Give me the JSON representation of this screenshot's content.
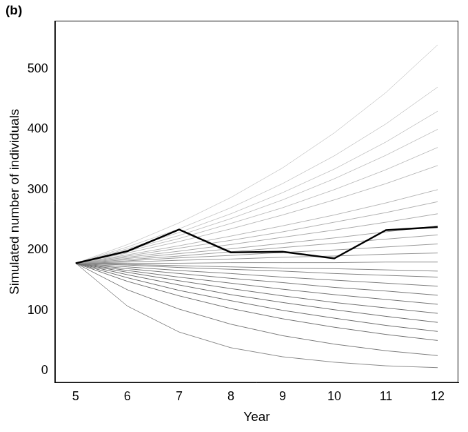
{
  "chart_data": {
    "type": "line",
    "panel_label": "(b)",
    "x_label": "Year",
    "y_label": "Simulated number of individuals",
    "x": [
      5,
      6,
      7,
      8,
      9,
      10,
      11,
      12
    ],
    "xlim": [
      4.6,
      12.4
    ],
    "xticks": [
      5,
      6,
      7,
      8,
      9,
      10,
      11,
      12
    ],
    "ylim": [
      -20,
      580
    ],
    "yticks": [
      0,
      100,
      200,
      300,
      400,
      500
    ],
    "grid": false,
    "series": [
      {
        "color": "#000000",
        "values": [
          178,
          198,
          234,
          196,
          197,
          186,
          233,
          238
        ]
      },
      {
        "color": "#d0d0d0",
        "values": [
          178,
          209,
          245,
          287,
          336,
          394,
          461,
          540
        ]
      },
      {
        "color": "#cccccc",
        "values": [
          178,
          205,
          235,
          270,
          310,
          356,
          409,
          470
        ]
      },
      {
        "color": "#c8c8c8",
        "values": [
          178,
          202,
          229,
          260,
          295,
          334,
          379,
          430
        ]
      },
      {
        "color": "#c4c4c4",
        "values": [
          178,
          200,
          224,
          252,
          283,
          318,
          357,
          400
        ]
      },
      {
        "color": "#c0c0c0",
        "values": [
          178,
          198,
          219,
          244,
          270,
          300,
          333,
          370
        ]
      },
      {
        "color": "#bbbbbb",
        "values": [
          178,
          195,
          214,
          235,
          258,
          283,
          310,
          340
        ]
      },
      {
        "color": "#b6b6b6",
        "values": [
          178,
          192,
          207,
          223,
          240,
          258,
          278,
          300
        ]
      },
      {
        "color": "#b0b0b0",
        "values": [
          178,
          190,
          203,
          216,
          230,
          246,
          262,
          280
        ]
      },
      {
        "color": "#aaaaaa",
        "values": [
          178,
          188,
          198,
          209,
          221,
          233,
          246,
          260
        ]
      },
      {
        "color": "#a4a4a4",
        "values": [
          178,
          186,
          194,
          202,
          211,
          220,
          230,
          240
        ]
      },
      {
        "color": "#9e9e9e",
        "values": [
          178,
          184,
          190,
          197,
          204,
          211,
          218,
          225
        ]
      },
      {
        "color": "#989898",
        "values": [
          178,
          182,
          187,
          191,
          196,
          200,
          205,
          210
        ]
      },
      {
        "color": "#929292",
        "values": [
          178,
          180,
          183,
          185,
          188,
          190,
          193,
          195
        ]
      },
      {
        "color": "#8c8c8c",
        "values": [
          178,
          178,
          178,
          179,
          179,
          179,
          180,
          180
        ]
      },
      {
        "color": "#868686",
        "values": [
          178,
          176,
          174,
          172,
          170,
          169,
          167,
          165
        ]
      },
      {
        "color": "#808080",
        "values": [
          178,
          175,
          171,
          168,
          165,
          161,
          158,
          155
        ]
      },
      {
        "color": "#7b7b7b",
        "values": [
          178,
          172,
          166,
          161,
          155,
          150,
          145,
          140
        ]
      },
      {
        "color": "#767676",
        "values": [
          178,
          169,
          161,
          153,
          146,
          138,
          132,
          125
        ]
      },
      {
        "color": "#727272",
        "values": [
          178,
          166,
          155,
          145,
          135,
          126,
          118,
          110
        ]
      },
      {
        "color": "#6e6e6e",
        "values": [
          178,
          163,
          149,
          136,
          124,
          113,
          104,
          95
        ]
      },
      {
        "color": "#6a6a6a",
        "values": [
          178,
          159,
          142,
          126,
          113,
          101,
          90,
          80
        ]
      },
      {
        "color": "#6c6c6c",
        "values": [
          178,
          154,
          133,
          116,
          100,
          87,
          75,
          65
        ]
      },
      {
        "color": "#707070",
        "values": [
          178,
          148,
          124,
          103,
          86,
          72,
          60,
          50
        ]
      },
      {
        "color": "#7a7a7a",
        "values": [
          178,
          134,
          102,
          77,
          58,
          44,
          33,
          25
        ]
      },
      {
        "color": "#888888",
        "values": [
          178,
          107,
          64,
          38,
          23,
          14,
          8,
          5
        ]
      }
    ]
  }
}
